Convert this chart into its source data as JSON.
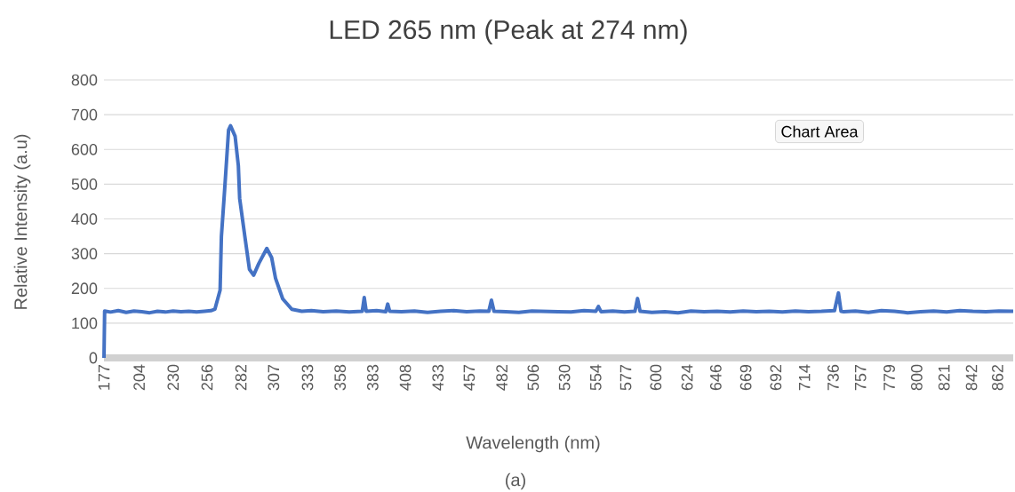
{
  "chart_data": {
    "type": "line",
    "title": "LED 265 nm (Peak at 274 nm)",
    "xlabel": "Wavelength (nm)",
    "ylabel": "Relative Intensity (a.u)",
    "annotations": [
      "Chart Area",
      "(a)"
    ],
    "x": [
      177,
      177.5,
      182,
      188,
      194,
      200,
      206,
      212,
      218,
      224,
      230,
      236,
      242,
      248,
      254,
      259,
      262,
      266,
      267,
      269.5,
      272.5,
      274,
      277.5,
      280,
      281,
      285,
      288.5,
      291.7,
      295.7,
      301.8,
      305.5,
      308.5,
      314,
      321,
      328.6,
      336,
      345,
      355,
      365,
      375,
      376.5,
      378,
      386,
      393,
      394.5,
      396,
      405,
      415,
      425,
      435,
      445,
      455,
      465,
      472,
      474,
      476,
      485,
      495,
      505,
      515,
      525,
      535,
      545,
      554,
      556,
      558,
      567,
      576,
      584,
      586,
      588,
      597,
      607,
      617,
      627,
      637,
      647,
      657,
      667,
      677,
      687,
      697,
      707,
      717,
      727,
      737,
      740,
      742,
      744,
      753,
      763,
      773,
      783,
      793,
      803,
      813,
      823,
      833,
      843,
      853,
      863,
      874
    ],
    "values": [
      0,
      135,
      132,
      136,
      131,
      135,
      133,
      130,
      134,
      132,
      135,
      133,
      134,
      132,
      134,
      136,
      140,
      195,
      349,
      485,
      656,
      668,
      638,
      553,
      459,
      349,
      255,
      238,
      272,
      315,
      289,
      229,
      170,
      140,
      134,
      136,
      133,
      135,
      132,
      134,
      174,
      134,
      136,
      133,
      155,
      134,
      133,
      135,
      131,
      134,
      136,
      133,
      135,
      134,
      166,
      134,
      133,
      131,
      135,
      134,
      133,
      132,
      136,
      134,
      148,
      133,
      135,
      132,
      134,
      171,
      134,
      131,
      133,
      130,
      135,
      133,
      134,
      132,
      135,
      133,
      134,
      132,
      135,
      133,
      134,
      136,
      187,
      134,
      133,
      135,
      131,
      136,
      134,
      130,
      133,
      135,
      132,
      136,
      134,
      133,
      135,
      134
    ],
    "color": "#4472c4",
    "xlim": [
      177,
      874
    ],
    "xticks": [
      177,
      204,
      230,
      256,
      282,
      307,
      333,
      358,
      383,
      408,
      433,
      457,
      482,
      506,
      530,
      554,
      577,
      600,
      624,
      646,
      669,
      692,
      714,
      736,
      757,
      779,
      800,
      821,
      842,
      862
    ],
    "ylim": [
      0,
      800
    ],
    "yticks": [
      0,
      100,
      200,
      300,
      400,
      500,
      600,
      700,
      800
    ],
    "grid": "y"
  }
}
